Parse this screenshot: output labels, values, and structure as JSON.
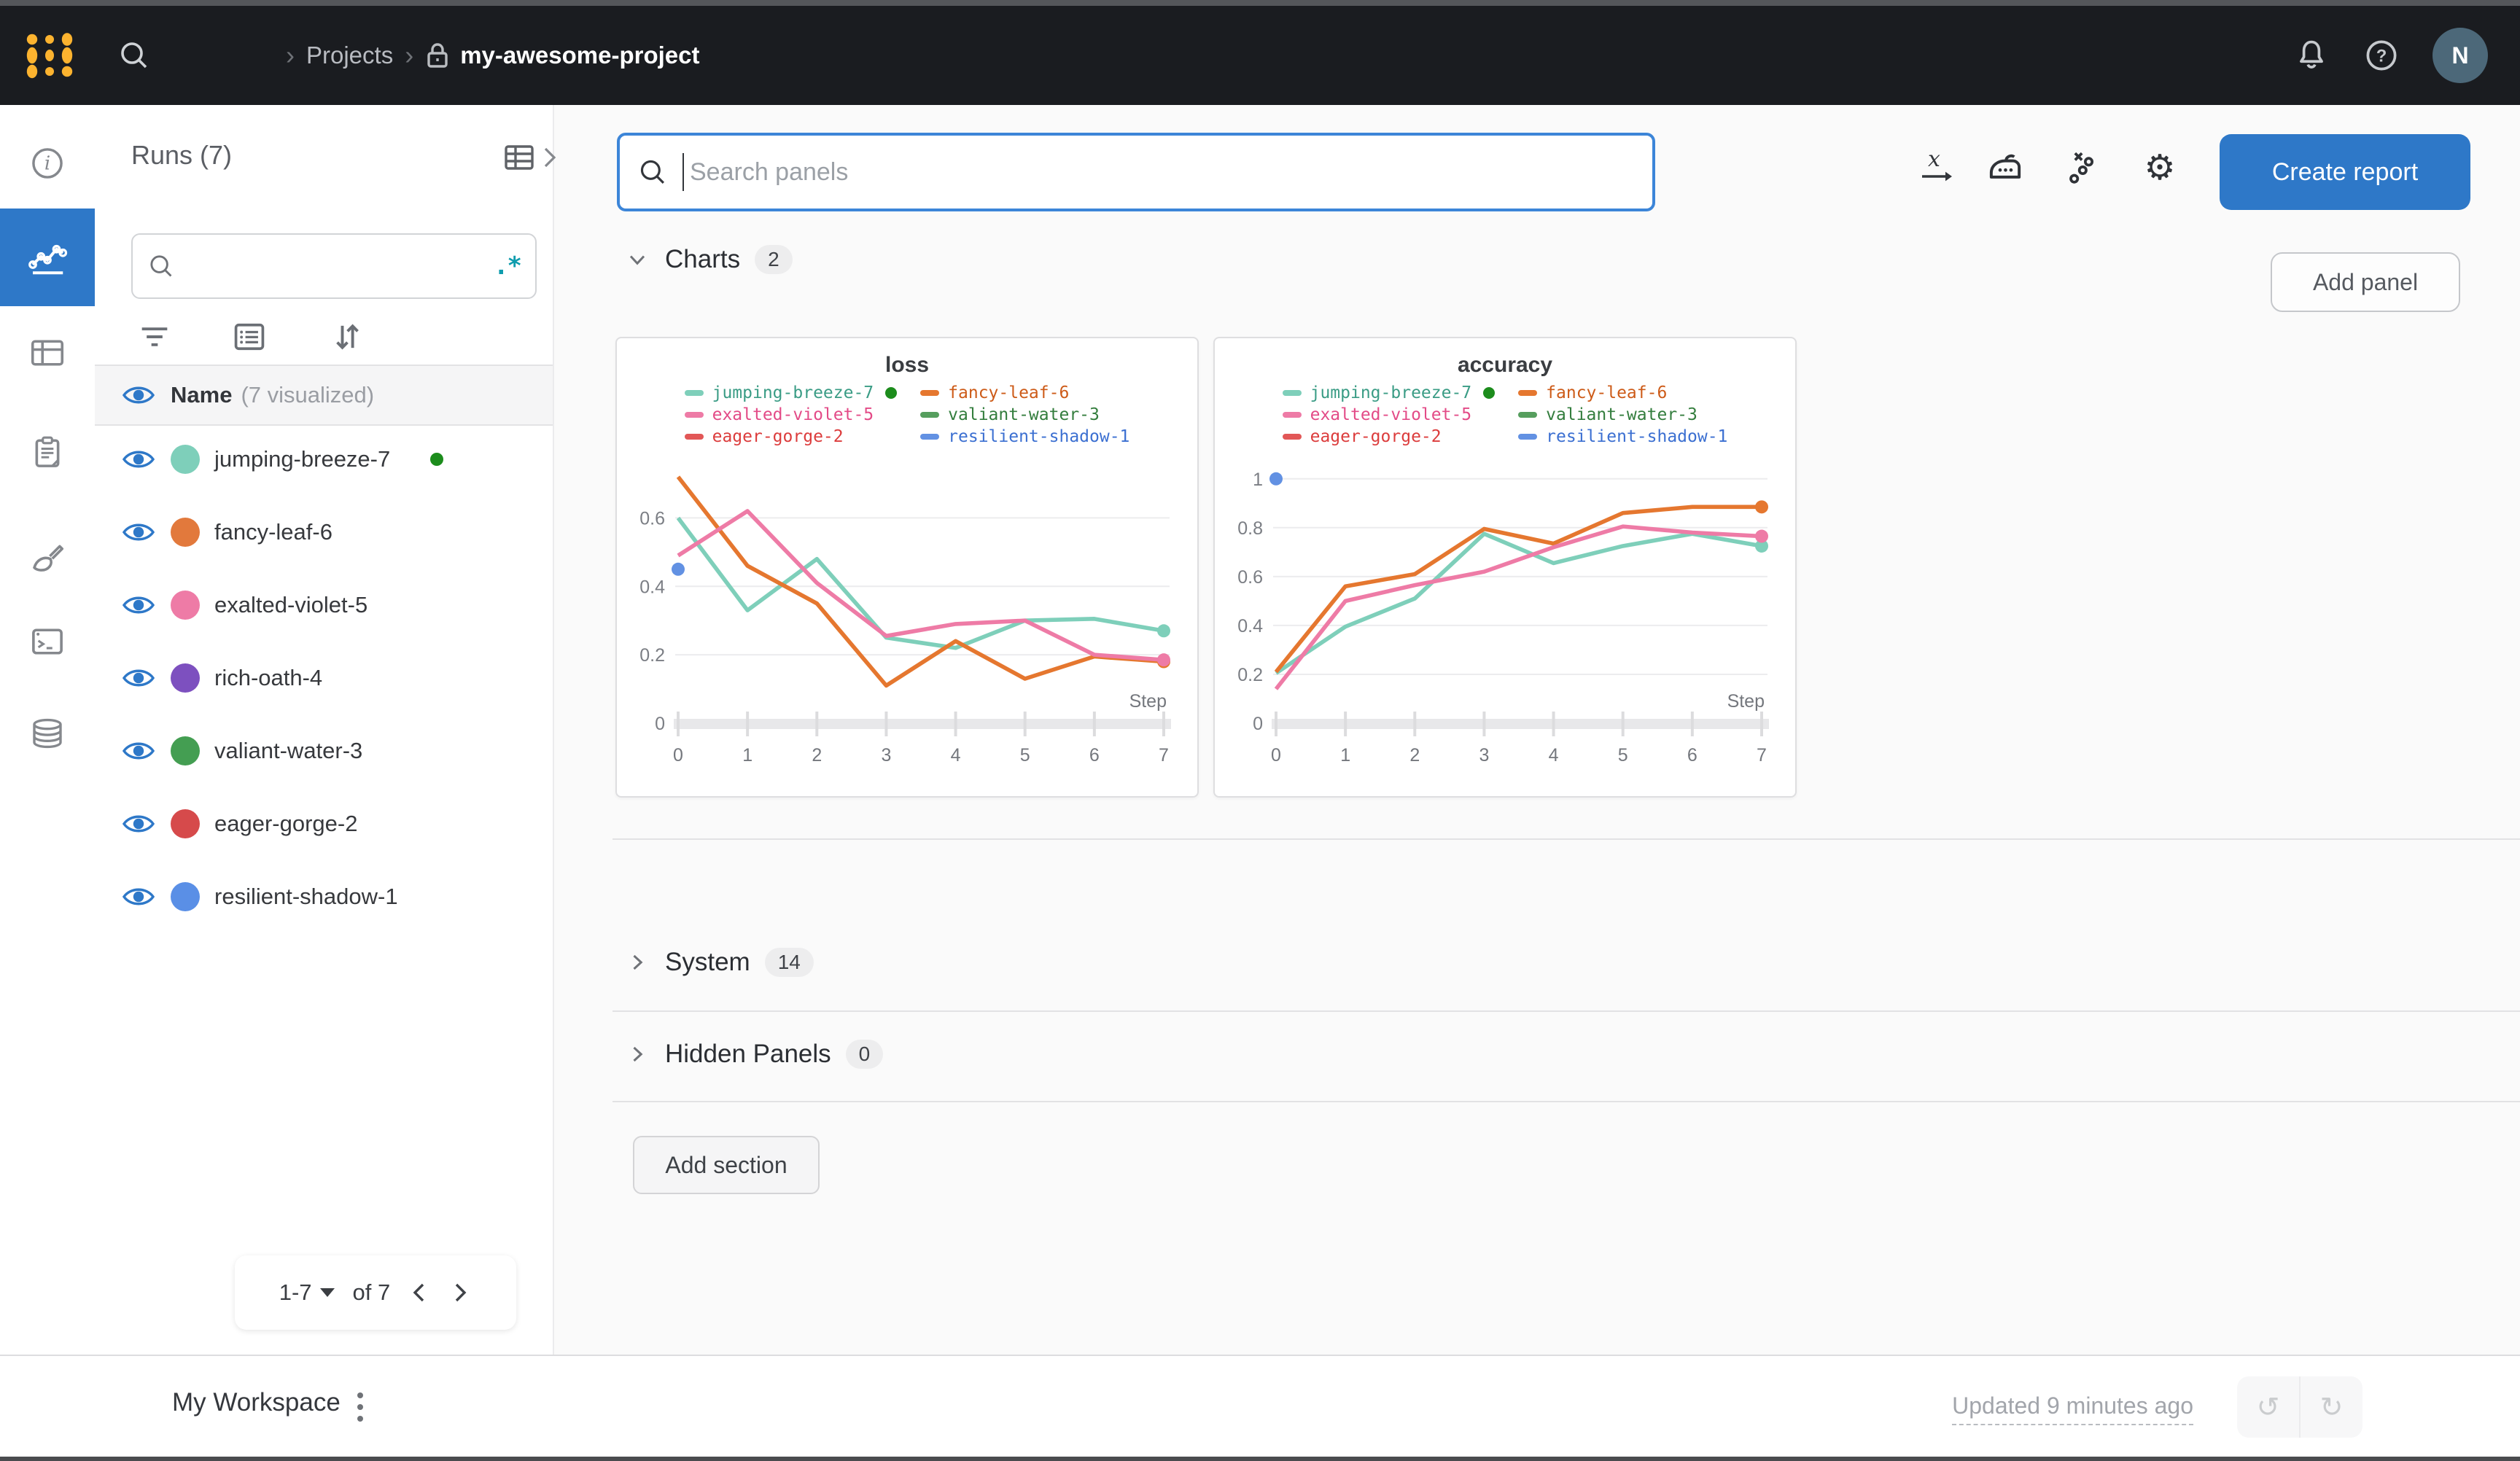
{
  "navbar": {
    "breadcrumb_sep": "›",
    "projects": "Projects",
    "project_name": "my-awesome-project",
    "avatar_initial": "N"
  },
  "rail": {
    "items": [
      "info-icon",
      "line-chart-icon",
      "table-icon",
      "clipboard-icon",
      "brush-icon",
      "terminal-icon",
      "database-icon"
    ],
    "selected": "line-chart-icon"
  },
  "runs_panel": {
    "title": "Runs (7)",
    "search_placeholder": "",
    "regex_glyph": ".*",
    "header": {
      "name": "Name",
      "sub": "(7 visualized)"
    },
    "runs": [
      {
        "name": "jumping-breeze-7",
        "color": "#7ecfba",
        "running": true
      },
      {
        "name": "fancy-leaf-6",
        "color": "#e2793c",
        "running": false
      },
      {
        "name": "exalted-violet-5",
        "color": "#ee7ba6",
        "running": false
      },
      {
        "name": "rich-oath-4",
        "color": "#7d50bf",
        "running": false
      },
      {
        "name": "valiant-water-3",
        "color": "#449e52",
        "running": false
      },
      {
        "name": "eager-gorge-2",
        "color": "#d64a4b",
        "running": false
      },
      {
        "name": "resilient-shadow-1",
        "color": "#5a8fe6",
        "running": false
      }
    ],
    "pagination": {
      "range": "1-7",
      "of": "of 7"
    }
  },
  "main": {
    "search_placeholder": "Search panels",
    "create_report": "Create report",
    "add_panel": "Add panel",
    "sections": {
      "charts": {
        "label": "Charts",
        "count": "2"
      },
      "system": {
        "label": "System",
        "count": "14"
      },
      "hidden": {
        "label": "Hidden Panels",
        "count": "0"
      }
    },
    "add_section": "Add section"
  },
  "footer": {
    "workspace": "My Workspace",
    "updated": "Updated 9 minutes ago"
  },
  "colors": {
    "accent_blue": "#2e78c8",
    "navbar_bg": "#1a1c20",
    "regex_teal": "#0e9cad",
    "running_green": "#1c8c1c",
    "avatar_bg": "#4c6879",
    "logo_yellow": "#fcb32f"
  },
  "chart_data": [
    {
      "type": "line",
      "title": "loss",
      "xlabel": "Step",
      "x": [
        0,
        1,
        2,
        3,
        4,
        5,
        6,
        7
      ],
      "ylim": [
        0,
        0.75
      ],
      "yticks": [
        0,
        0.2,
        0.4,
        0.6
      ],
      "grid": true,
      "legend_position": "top",
      "series": [
        {
          "name": "jumping-breeze-7",
          "color": "#7ecfba",
          "label_color": "#3a9c85",
          "running": true,
          "end_dot": true,
          "values": [
            0.6,
            0.33,
            0.48,
            0.25,
            0.22,
            0.3,
            0.305,
            0.27
          ]
        },
        {
          "name": "fancy-leaf-6",
          "color": "#e5772f",
          "label_color": "#cd5b18",
          "end_dot": true,
          "values": [
            0.72,
            0.46,
            0.35,
            0.11,
            0.24,
            0.13,
            0.195,
            0.18
          ]
        },
        {
          "name": "exalted-violet-5",
          "color": "#ee7ba6",
          "label_color": "#e34b87",
          "end_dot": true,
          "values": [
            0.49,
            0.62,
            0.41,
            0.255,
            0.29,
            0.3,
            0.2,
            0.185
          ]
        },
        {
          "name": "valiant-water-3",
          "color": "#569e5e",
          "label_color": "#337d3d",
          "values": null
        },
        {
          "name": "eager-gorge-2",
          "color": "#e25757",
          "label_color": "#dc3c3c",
          "values": null
        },
        {
          "name": "resilient-shadow-1",
          "color": "#6291e3",
          "label_color": "#3b6fd1",
          "point": [
            0,
            0.45
          ]
        }
      ]
    },
    {
      "type": "line",
      "title": "accuracy",
      "xlabel": "Step",
      "x": [
        0,
        1,
        2,
        3,
        4,
        5,
        6,
        7
      ],
      "ylim": [
        0,
        1.05
      ],
      "yticks": [
        0,
        0.2,
        0.4,
        0.6,
        0.8,
        1
      ],
      "grid": true,
      "legend_position": "top",
      "series": [
        {
          "name": "jumping-breeze-7",
          "color": "#7ecfba",
          "label_color": "#3a9c85",
          "running": true,
          "end_dot": true,
          "values": [
            0.205,
            0.395,
            0.51,
            0.775,
            0.655,
            0.725,
            0.775,
            0.725
          ]
        },
        {
          "name": "fancy-leaf-6",
          "color": "#e5772f",
          "label_color": "#cd5b18",
          "end_dot": true,
          "values": [
            0.21,
            0.56,
            0.61,
            0.795,
            0.735,
            0.86,
            0.885,
            0.885
          ]
        },
        {
          "name": "exalted-violet-5",
          "color": "#ee7ba6",
          "label_color": "#e34b87",
          "end_dot": true,
          "values": [
            0.14,
            0.5,
            0.565,
            0.62,
            0.72,
            0.805,
            0.78,
            0.765
          ]
        },
        {
          "name": "valiant-water-3",
          "color": "#569e5e",
          "label_color": "#337d3d",
          "values": null
        },
        {
          "name": "eager-gorge-2",
          "color": "#e25757",
          "label_color": "#dc3c3c",
          "values": null
        },
        {
          "name": "resilient-shadow-1",
          "color": "#6291e3",
          "label_color": "#3b6fd1",
          "point": [
            0,
            1.0
          ]
        }
      ]
    }
  ]
}
